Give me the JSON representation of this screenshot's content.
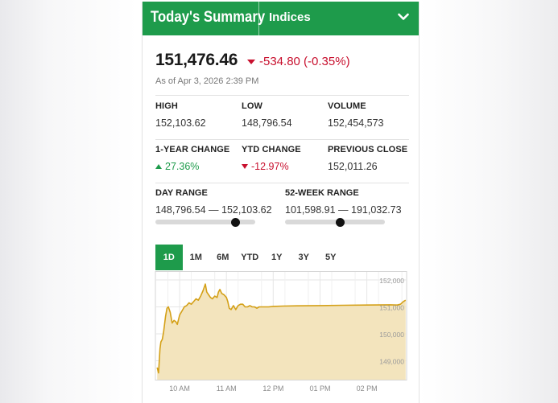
{
  "header": {
    "title": "Today's Summary",
    "selector_label": "Indices"
  },
  "quote": {
    "price": "151,476.46",
    "change": "-534.80 (-0.35%)",
    "as_of": "As of Apr 3, 2026 2:39 PM"
  },
  "stats": [
    {
      "label": "HIGH",
      "value": "152,103.62",
      "direction": "none"
    },
    {
      "label": "LOW",
      "value": "148,796.54",
      "direction": "none"
    },
    {
      "label": "VOLUME",
      "value": "152,454,573",
      "direction": "none"
    },
    {
      "label": "1-YEAR CHANGE",
      "value": "27.36%",
      "direction": "up"
    },
    {
      "label": "YTD CHANGE",
      "value": "-12.97%",
      "direction": "down"
    },
    {
      "label": "PREVIOUS CLOSE",
      "value": "152,011.26",
      "direction": "none"
    }
  ],
  "ranges": {
    "day": {
      "label": "DAY RANGE",
      "text": "148,796.54 — 152,103.62",
      "position": 0.805
    },
    "week52": {
      "label": "52-WEEK RANGE",
      "text": "101,598.91 — 191,032.73",
      "position": 0.55
    }
  },
  "tabs": [
    "1D",
    "1M",
    "6M",
    "YTD",
    "1Y",
    "3Y",
    "5Y"
  ],
  "active_tab": "1D",
  "colors": {
    "brand": "#1e9b4b",
    "negative": "#c8102e",
    "line": "#d4a017",
    "fill": "#f3e4bd"
  },
  "chart_data": {
    "type": "area",
    "x_ticks": [
      "10 AM",
      "11 AM",
      "12 PM",
      "01 PM",
      "02 PM"
    ],
    "y_ticks": [
      "152,000",
      "151,000",
      "150,000",
      "149,000"
    ],
    "ylim": [
      148300,
      152300
    ],
    "xlim": [
      9.5,
      14.85
    ],
    "series": [
      {
        "x": [
          9.52,
          9.55,
          9.58,
          9.6,
          9.63,
          9.66,
          9.7,
          9.73,
          9.76,
          9.8,
          9.84,
          9.88,
          9.92,
          9.95,
          10.0,
          10.05,
          10.1,
          10.15,
          10.2,
          10.25,
          10.3,
          10.35,
          10.4,
          10.45,
          10.5,
          10.53,
          10.55,
          10.58,
          10.62,
          10.66,
          10.7,
          10.75,
          10.8,
          10.83,
          10.86,
          10.9,
          10.95,
          11.0,
          11.03,
          11.06,
          11.1,
          11.15,
          11.2,
          11.25,
          11.3,
          11.35,
          11.4,
          11.45,
          11.5,
          11.55,
          11.6,
          11.65,
          11.7,
          11.8,
          11.9,
          12.0,
          12.2,
          12.5,
          13.0,
          13.5,
          14.0,
          14.5,
          14.65,
          14.72,
          14.78,
          14.83
        ],
        "y": [
          148750,
          148550,
          149450,
          149700,
          149800,
          150100,
          150650,
          150950,
          151000,
          150800,
          150400,
          150500,
          150450,
          150350,
          150700,
          150850,
          151000,
          151050,
          151150,
          151100,
          151200,
          151300,
          151250,
          151400,
          151600,
          151750,
          151850,
          151550,
          151450,
          151350,
          151300,
          151400,
          151350,
          151550,
          151650,
          151500,
          151450,
          151350,
          151200,
          150950,
          150900,
          151050,
          150900,
          151050,
          151100,
          151100,
          151000,
          151000,
          151050,
          151000,
          151000,
          150950,
          151000,
          151000,
          151000,
          151020,
          151030,
          151040,
          151050,
          151060,
          151070,
          151080,
          151070,
          151100,
          151200,
          151250
        ],
        "color": "#d4a017"
      }
    ]
  }
}
